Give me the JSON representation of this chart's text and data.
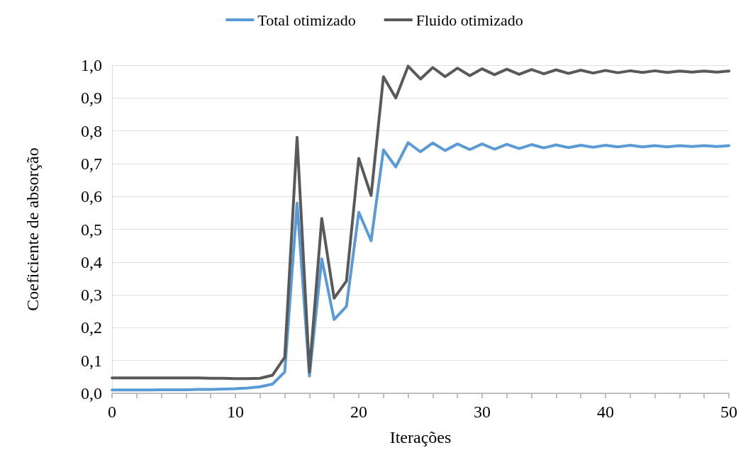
{
  "chart_data": {
    "type": "line",
    "xlabel": "Iterações",
    "ylabel": "Coeficiente de absorção",
    "x": [
      0,
      1,
      2,
      3,
      4,
      5,
      6,
      7,
      8,
      9,
      10,
      11,
      12,
      13,
      14,
      15,
      16,
      17,
      18,
      19,
      20,
      21,
      22,
      23,
      24,
      25,
      26,
      27,
      28,
      29,
      30,
      31,
      32,
      33,
      34,
      35,
      36,
      37,
      38,
      39,
      40,
      41,
      42,
      43,
      44,
      45,
      46,
      47,
      48,
      49,
      50
    ],
    "series": [
      {
        "name": "Total otimizado",
        "color": "#5b9bd5",
        "values": [
          0.01,
          0.01,
          0.01,
          0.01,
          0.011,
          0.011,
          0.011,
          0.012,
          0.012,
          0.013,
          0.014,
          0.016,
          0.02,
          0.028,
          0.065,
          0.58,
          0.053,
          0.41,
          0.225,
          0.265,
          0.552,
          0.465,
          0.742,
          0.69,
          0.764,
          0.736,
          0.763,
          0.74,
          0.76,
          0.743,
          0.76,
          0.744,
          0.759,
          0.746,
          0.758,
          0.748,
          0.757,
          0.749,
          0.756,
          0.75,
          0.756,
          0.751,
          0.756,
          0.751,
          0.755,
          0.751,
          0.755,
          0.752,
          0.755,
          0.752,
          0.755
        ]
      },
      {
        "name": "Fluido otimizado",
        "color": "#595959",
        "values": [
          0.047,
          0.047,
          0.047,
          0.047,
          0.047,
          0.047,
          0.047,
          0.047,
          0.046,
          0.046,
          0.045,
          0.045,
          0.046,
          0.055,
          0.11,
          0.78,
          0.065,
          0.533,
          0.29,
          0.342,
          0.716,
          0.603,
          0.965,
          0.9,
          0.997,
          0.958,
          0.993,
          0.965,
          0.991,
          0.968,
          0.989,
          0.971,
          0.988,
          0.972,
          0.987,
          0.974,
          0.986,
          0.975,
          0.985,
          0.976,
          0.984,
          0.977,
          0.983,
          0.978,
          0.983,
          0.978,
          0.982,
          0.979,
          0.982,
          0.979,
          0.982
        ]
      }
    ],
    "xlim": [
      0,
      50
    ],
    "xticks": [
      0,
      {
        "value": 2,
        "label": null
      },
      {
        "value": 4,
        "label": null
      },
      {
        "value": 6,
        "label": null
      },
      {
        "value": 8,
        "label": null
      },
      10,
      {
        "value": 12,
        "label": null
      },
      {
        "value": 14,
        "label": null
      },
      {
        "value": 16,
        "label": null
      },
      {
        "value": 18,
        "label": null
      },
      20,
      {
        "value": 22,
        "label": null
      },
      {
        "value": 24,
        "label": null
      },
      {
        "value": 26,
        "label": null
      },
      {
        "value": 28,
        "label": null
      },
      30,
      {
        "value": 32,
        "label": null
      },
      {
        "value": 34,
        "label": null
      },
      {
        "value": 36,
        "label": null
      },
      {
        "value": 38,
        "label": null
      },
      40,
      {
        "value": 42,
        "label": null
      },
      {
        "value": 44,
        "label": null
      },
      {
        "value": 46,
        "label": null
      },
      {
        "value": 48,
        "label": null
      },
      50
    ],
    "ylim": [
      0,
      1
    ],
    "yticks": [
      {
        "value": 0,
        "label": "0,0"
      },
      {
        "value": 0.1,
        "label": "0,1"
      },
      {
        "value": 0.2,
        "label": "0,2"
      },
      {
        "value": 0.3,
        "label": "0,3"
      },
      {
        "value": 0.4,
        "label": "0,4"
      },
      {
        "value": 0.5,
        "label": "0,5"
      },
      {
        "value": 0.6,
        "label": "0,6"
      },
      {
        "value": 0.7,
        "label": "0,7"
      },
      {
        "value": 0.8,
        "label": "0,8"
      },
      {
        "value": 0.9,
        "label": "0,9"
      },
      {
        "value": 1,
        "label": "1,0"
      }
    ],
    "grid": "y",
    "legend": "top",
    "marker": "none",
    "line_style": "solid"
  }
}
